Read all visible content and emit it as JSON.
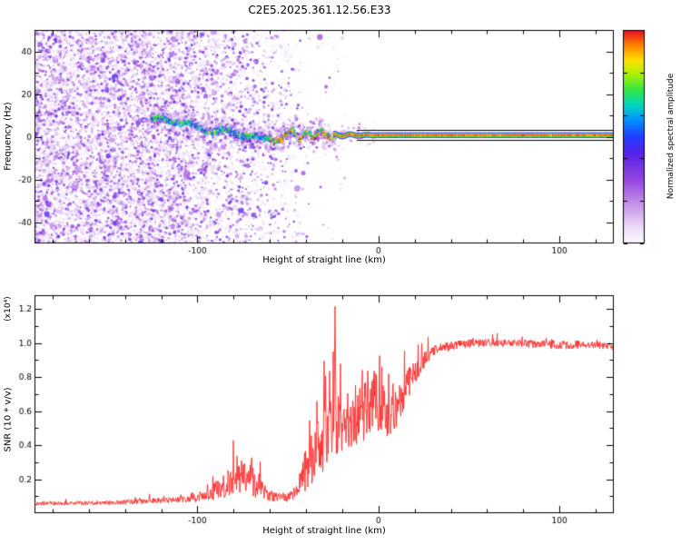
{
  "title": "C2E5.2025.361.12.56.E33",
  "chart_data": [
    {
      "type": "heatmap",
      "xlabel": "Height of straight line (km)",
      "ylabel": "Frequency (Hz)",
      "xlim": [
        -190,
        130
      ],
      "ylim": [
        -50,
        50
      ],
      "x_major_ticks": [
        -100,
        0,
        100
      ],
      "x_minor_step": 20,
      "y_major_ticks": [
        -40,
        -20,
        0,
        20,
        40
      ],
      "y_minor_step": 10,
      "colorbar": {
        "label": "Normalized spectral amplitude",
        "ticks": [
          0.0,
          0.2,
          0.4,
          0.6,
          0.8
        ],
        "range": [
          0,
          1
        ],
        "colormap": [
          {
            "v": 0.0,
            "c": "#fdfaff"
          },
          {
            "v": 0.08,
            "c": "#ecd9f7"
          },
          {
            "v": 0.18,
            "c": "#c795e8"
          },
          {
            "v": 0.3,
            "c": "#9646df"
          },
          {
            "v": 0.42,
            "c": "#5a23e6"
          },
          {
            "v": 0.5,
            "c": "#233cff"
          },
          {
            "v": 0.58,
            "c": "#0091ff"
          },
          {
            "v": 0.65,
            "c": "#00d7be"
          },
          {
            "v": 0.72,
            "c": "#32e646"
          },
          {
            "v": 0.8,
            "c": "#b4f000"
          },
          {
            "v": 0.86,
            "c": "#ffe100"
          },
          {
            "v": 0.93,
            "c": "#ff8200"
          },
          {
            "v": 1.0,
            "c": "#e10f23"
          }
        ]
      },
      "track": [
        [
          -126,
          9
        ],
        [
          -118,
          7
        ],
        [
          -110,
          6.5
        ],
        [
          -102,
          5
        ],
        [
          -94,
          4
        ],
        [
          -86,
          2.5
        ],
        [
          -78,
          1
        ],
        [
          -72,
          -0.5
        ],
        [
          -66,
          -1
        ],
        [
          -60,
          0.5
        ],
        [
          -54,
          -1
        ],
        [
          -48,
          2.5
        ],
        [
          -44,
          -2.5
        ],
        [
          -40,
          3
        ],
        [
          -36,
          -1.5
        ],
        [
          -32,
          2
        ],
        [
          -28,
          0
        ],
        [
          -25,
          0.7
        ]
      ],
      "flat_band": {
        "x_start": -25,
        "x_end": 130,
        "center_freq": 0.7,
        "contour_freqs": [
          3.0,
          -1.6
        ],
        "contour_x_start": -12
      },
      "noise_region": {
        "x_start": -190,
        "x_end": -25
      }
    },
    {
      "type": "line",
      "xlabel": "Height of straight line (km)",
      "ylabel": "SNR (10 * v/v)",
      "scale_note": "(x10⁴)",
      "xlim": [
        -190,
        130
      ],
      "ylim": [
        0,
        1.28
      ],
      "x_major_ticks": [
        -100,
        0,
        100
      ],
      "x_minor_step": 20,
      "y_major_ticks": [
        0.2,
        0.4,
        0.6,
        0.8,
        1.0,
        1.2
      ],
      "y_minor_step": 0.1,
      "line_color": "#ff2a2a",
      "envelope": [
        [
          -190,
          0.055,
          0.02
        ],
        [
          -150,
          0.06,
          0.025
        ],
        [
          -125,
          0.07,
          0.03
        ],
        [
          -108,
          0.08,
          0.045
        ],
        [
          -96,
          0.1,
          0.07
        ],
        [
          -88,
          0.13,
          0.12
        ],
        [
          -81,
          0.18,
          0.18
        ],
        [
          -74,
          0.22,
          0.22
        ],
        [
          -68,
          0.16,
          0.16
        ],
        [
          -62,
          0.11,
          0.08
        ],
        [
          -56,
          0.09,
          0.05
        ],
        [
          -50,
          0.09,
          0.05
        ],
        [
          -45,
          0.12,
          0.08
        ],
        [
          -42,
          0.2,
          0.2
        ],
        [
          -38,
          0.3,
          0.3
        ],
        [
          -34,
          0.35,
          0.35
        ],
        [
          -30,
          0.4,
          0.35
        ],
        [
          -26,
          0.45,
          0.4
        ],
        [
          -22,
          0.5,
          0.35
        ],
        [
          -18,
          0.45,
          0.3
        ],
        [
          -14,
          0.5,
          0.3
        ],
        [
          -10,
          0.55,
          0.35
        ],
        [
          -6,
          0.6,
          0.35
        ],
        [
          -2,
          0.65,
          0.35
        ],
        [
          2,
          0.6,
          0.3
        ],
        [
          6,
          0.55,
          0.25
        ],
        [
          10,
          0.6,
          0.28
        ],
        [
          14,
          0.7,
          0.22
        ],
        [
          18,
          0.78,
          0.16
        ],
        [
          22,
          0.85,
          0.12
        ],
        [
          27,
          0.92,
          0.08
        ],
        [
          32,
          0.96,
          0.06
        ],
        [
          45,
          0.99,
          0.05
        ],
        [
          60,
          1.0,
          0.045
        ],
        [
          80,
          0.995,
          0.05
        ],
        [
          100,
          0.985,
          0.05
        ],
        [
          120,
          0.99,
          0.045
        ],
        [
          130,
          0.975,
          0.04
        ]
      ],
      "spikes": [
        [
          -24,
          1.25,
          1.0
        ],
        [
          -27,
          0.85,
          0.8
        ],
        [
          -30,
          0.9,
          0.8
        ],
        [
          -34,
          0.65,
          0.7
        ],
        [
          -21,
          0.9,
          0.7
        ],
        [
          -17,
          0.75,
          0.7
        ],
        [
          -38,
          0.55,
          0.7
        ],
        [
          -9,
          0.9,
          0.8
        ],
        [
          -6,
          0.95,
          0.7
        ],
        [
          -3,
          0.9,
          0.6
        ],
        [
          8,
          0.9,
          0.7
        ],
        [
          -70,
          0.36,
          0.9
        ],
        [
          -74,
          0.32,
          0.8
        ],
        [
          -78,
          0.3,
          0.7
        ],
        [
          -66,
          0.28,
          0.7
        ],
        [
          -83,
          0.25,
          0.7
        ]
      ]
    }
  ],
  "colors": {
    "axis": "#000000",
    "background": "#ffffff"
  }
}
